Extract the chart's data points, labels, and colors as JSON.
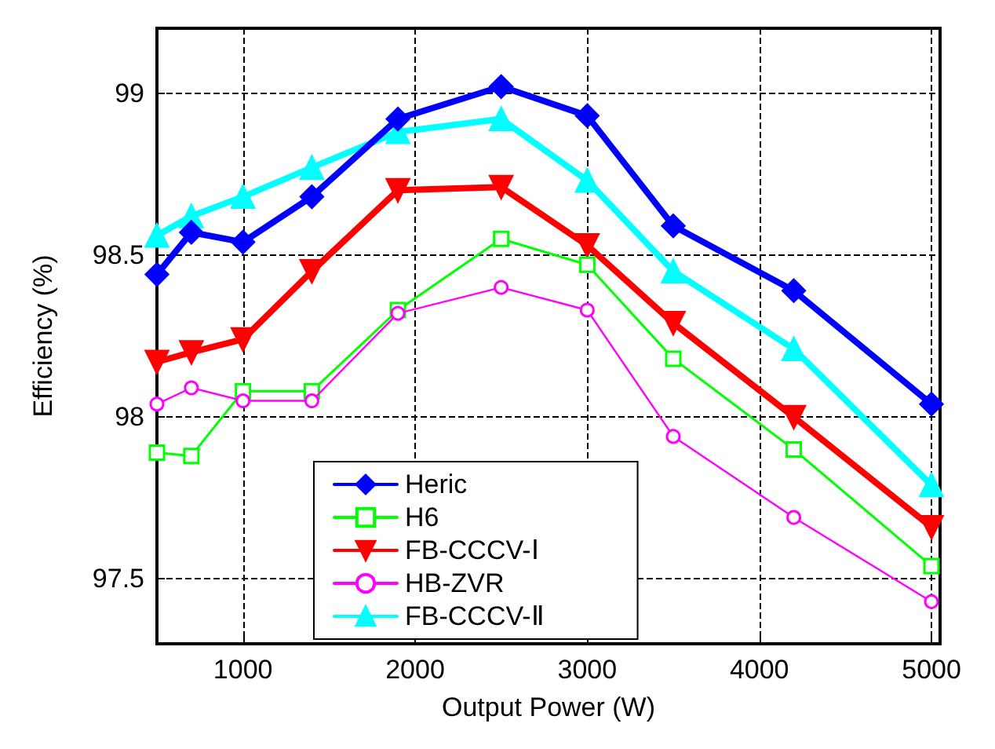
{
  "chart_data": {
    "type": "line",
    "xlabel": "Output Power (W)",
    "ylabel": "Efficiency (%)",
    "x": [
      500,
      700,
      1000,
      1400,
      1900,
      2500,
      3000,
      3500,
      4200,
      5000
    ],
    "xlim": [
      500,
      5050
    ],
    "xticks": [
      1000,
      2000,
      3000,
      4000,
      5000
    ],
    "ylim": [
      97.3,
      99.2
    ],
    "yticks": [
      97.5,
      98,
      98.5,
      99
    ],
    "grid": true,
    "legend": "bottom",
    "line_style": "solid",
    "series": [
      {
        "name": "Heric",
        "color": "#0000ff",
        "marker": "diamond",
        "values": [
          98.44,
          98.57,
          98.54,
          98.68,
          98.92,
          99.02,
          98.93,
          98.59,
          98.39,
          98.04
        ]
      },
      {
        "name": "H6",
        "color": "#00ff00",
        "marker": "square",
        "values": [
          97.89,
          97.88,
          98.08,
          98.08,
          98.33,
          98.55,
          98.47,
          98.18,
          97.9,
          97.54
        ]
      },
      {
        "name": "FB-CCCV-Ⅰ",
        "color": "#ff0000",
        "marker": "triangle",
        "values": [
          98.17,
          98.2,
          98.24,
          98.45,
          98.7,
          98.71,
          98.53,
          98.29,
          98.0,
          97.66
        ]
      },
      {
        "name": "HB-ZVR",
        "color": "#ff00ff",
        "marker": "circle",
        "values": [
          98.04,
          98.09,
          98.05,
          98.05,
          98.32,
          98.4,
          98.33,
          97.94,
          97.69,
          97.43
        ]
      },
      {
        "name": "FB-CCCV-Ⅱ",
        "color": "#00ffff",
        "marker": "triangle",
        "values": [
          98.56,
          98.62,
          98.68,
          98.77,
          98.88,
          98.92,
          98.73,
          98.45,
          98.21,
          97.79
        ]
      }
    ]
  }
}
